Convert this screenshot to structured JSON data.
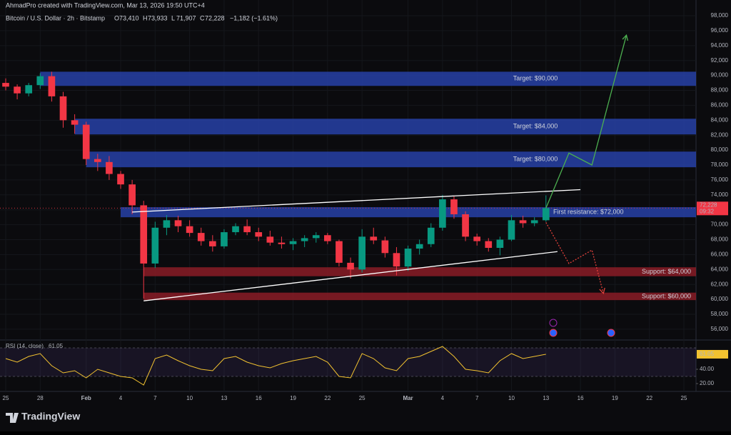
{
  "header": {
    "credit": "AhmadPro created with TradingView.com, Mar 13, 2026 19:50 UTC+4",
    "symbol": "Bitcoin / U.S. Dollar · 2h · Bitstamp",
    "ohlc": [
      {
        "key": "O",
        "value": "73,410"
      },
      {
        "key": "H",
        "value": "73,933"
      },
      {
        "key": "L",
        "value": "71,907"
      },
      {
        "key": "C",
        "value": "72,228"
      }
    ],
    "change": "−1,182 (−1.61%)"
  },
  "footer": {
    "brand": "TradingView"
  },
  "chart_data": {
    "type": "candlestick",
    "x": [
      "Jan 25",
      "Jan 26",
      "Jan 27",
      "Jan 28",
      "Jan 29",
      "Jan 30",
      "Jan 31",
      "Feb 1",
      "Feb 2",
      "Feb 3",
      "Feb 4",
      "Feb 5",
      "Feb 6",
      "Feb 7",
      "Feb 8",
      "Feb 9",
      "Feb 10",
      "Feb 11",
      "Feb 12",
      "Feb 13",
      "Feb 14",
      "Feb 15",
      "Feb 16",
      "Feb 17",
      "Feb 18",
      "Feb 19",
      "Feb 20",
      "Feb 21",
      "Feb 22",
      "Feb 23",
      "Feb 24",
      "Feb 25",
      "Feb 26",
      "Feb 27",
      "Feb 28",
      "Mar 1",
      "Mar 2",
      "Mar 3",
      "Mar 4",
      "Mar 5",
      "Mar 6",
      "Mar 7",
      "Mar 8",
      "Mar 9",
      "Mar 10",
      "Mar 11",
      "Mar 12",
      "Mar 13"
    ],
    "open": [
      89000,
      88500,
      87600,
      88700,
      89900,
      87200,
      84000,
      83400,
      78800,
      78400,
      76800,
      75400,
      72600,
      64800,
      69600,
      70600,
      69800,
      68900,
      67800,
      67100,
      69000,
      69800,
      69000,
      68400,
      67600,
      67400,
      67800,
      68200,
      68600,
      67800,
      64900,
      64000,
      68400,
      67900,
      66200,
      64400,
      66800,
      67400,
      69600,
      73400,
      71400,
      68400,
      67800,
      66900,
      68000,
      70600,
      70200,
      70600
    ],
    "high": [
      89600,
      88800,
      89000,
      90300,
      90500,
      87800,
      84800,
      83800,
      79500,
      79200,
      77200,
      76000,
      73200,
      70400,
      71300,
      71200,
      70600,
      69600,
      68600,
      69400,
      70200,
      70700,
      69600,
      69200,
      68400,
      68200,
      68600,
      69000,
      68900,
      68000,
      65600,
      69400,
      69600,
      68400,
      67000,
      67200,
      68000,
      70200,
      74000,
      73800,
      71800,
      68800,
      68200,
      68400,
      71300,
      71200,
      71000,
      73933
    ],
    "low": [
      88000,
      86800,
      87200,
      88200,
      86500,
      83000,
      82200,
      78000,
      77200,
      76000,
      74800,
      71400,
      60100,
      64200,
      68600,
      69000,
      68400,
      67200,
      66400,
      66800,
      68600,
      68600,
      67800,
      67200,
      66800,
      66600,
      67000,
      67600,
      67400,
      64400,
      62800,
      63600,
      67400,
      65600,
      63200,
      63800,
      66000,
      67000,
      69200,
      70800,
      67800,
      67200,
      66400,
      65900,
      67800,
      69600,
      69800,
      70400
    ],
    "close": [
      88500,
      87600,
      88700,
      89900,
      87200,
      84000,
      83400,
      78800,
      78400,
      76800,
      75400,
      72600,
      64800,
      69600,
      70600,
      69800,
      68900,
      67800,
      67100,
      69000,
      69800,
      69000,
      68400,
      67600,
      67400,
      67800,
      68200,
      68600,
      67800,
      64900,
      64000,
      68400,
      67900,
      66200,
      64400,
      66800,
      67400,
      69600,
      73400,
      71400,
      68400,
      67800,
      66900,
      68000,
      70600,
      70200,
      70600,
      72228
    ],
    "up_color": "#089981",
    "down_color": "#f23645",
    "xlim": [
      "Jan 25",
      "Mar 25"
    ],
    "xticks": [
      {
        "value": "Jan 25",
        "label": "25"
      },
      {
        "value": "Jan 28",
        "label": "28"
      },
      {
        "value": "Feb 1",
        "label": "Feb"
      },
      {
        "value": "Feb 4",
        "label": "4"
      },
      {
        "value": "Feb 7",
        "label": "7"
      },
      {
        "value": "Feb 10",
        "label": "10"
      },
      {
        "value": "Feb 13",
        "label": "13"
      },
      {
        "value": "Feb 16",
        "label": "16"
      },
      {
        "value": "Feb 19",
        "label": "19"
      },
      {
        "value": "Feb 22",
        "label": "22"
      },
      {
        "value": "Feb 25",
        "label": "25"
      },
      {
        "value": "Mar 1",
        "label": "Mar"
      },
      {
        "value": "Mar 4",
        "label": "4"
      },
      {
        "value": "Mar 7",
        "label": "7"
      },
      {
        "value": "Mar 10",
        "label": "10"
      },
      {
        "value": "Mar 13",
        "label": "13"
      },
      {
        "value": "Mar 16",
        "label": "16"
      },
      {
        "value": "Mar 19",
        "label": "19"
      },
      {
        "value": "Mar 22",
        "label": "22"
      },
      {
        "value": "Mar 25",
        "label": "25"
      }
    ],
    "ylim": [
      54650,
      98960
    ],
    "yticks": [
      {
        "value": 56000,
        "label": "56,000"
      },
      {
        "value": 58000,
        "label": "58,000"
      },
      {
        "value": 60000,
        "label": "60,000"
      },
      {
        "value": 62000,
        "label": "62,000"
      },
      {
        "value": 64000,
        "label": "64,000"
      },
      {
        "value": 66000,
        "label": "66,000"
      },
      {
        "value": 68000,
        "label": "68,000"
      },
      {
        "value": 70000,
        "label": "70,000"
      },
      {
        "value": 72000,
        "label": "72,000"
      },
      {
        "value": 74000,
        "label": "74,000"
      },
      {
        "value": 76000,
        "label": "76,000"
      },
      {
        "value": 78000,
        "label": "78,000"
      },
      {
        "value": 80000,
        "label": "80,000"
      },
      {
        "value": 82000,
        "label": "82,000"
      },
      {
        "value": 84000,
        "label": "84,000"
      },
      {
        "value": 86000,
        "label": "86,000"
      },
      {
        "value": 88000,
        "label": "88,000"
      },
      {
        "value": 90000,
        "label": "90,000"
      },
      {
        "value": 92000,
        "label": "92,000"
      },
      {
        "value": 94000,
        "label": "94,000"
      },
      {
        "value": 96000,
        "label": "96,000"
      },
      {
        "value": 98000,
        "label": "98,000"
      }
    ],
    "last_price": {
      "value": 72228,
      "label": "72,228"
    },
    "countdown": "09:32",
    "zones": [
      {
        "label": "Target: $90,000",
        "range": [
          88600,
          90500
        ],
        "from": "Jan 28",
        "color": "#2741a6",
        "align": "middle"
      },
      {
        "label": "Target: $84,000",
        "range": [
          82100,
          84200
        ],
        "from": "Jan 31",
        "color": "#2741a6",
        "align": "middle"
      },
      {
        "label": "Target: $80,000",
        "range": [
          77700,
          79800
        ],
        "from": "Feb 1",
        "color": "#2741a6",
        "align": "middle"
      },
      {
        "label": "First resistance: $72,000",
        "range": [
          71000,
          72350
        ],
        "from": "Feb 4",
        "color": "#2741a6",
        "align": "start"
      },
      {
        "label": "Support: $64,000",
        "range": [
          63100,
          64300
        ],
        "from": "Feb 6",
        "color": "#8a1c26",
        "align": "end"
      },
      {
        "label": "Support: $60,000",
        "range": [
          59900,
          60900
        ],
        "from": "Feb 6",
        "color": "#8a1c26",
        "align": "end"
      }
    ],
    "lines": [
      {
        "x": [
          "Feb 5",
          "Mar 16"
        ],
        "values": [
          71700,
          74700
        ],
        "color": "#ffffff",
        "style": "solid"
      },
      {
        "x": [
          "Feb 6",
          "Mar 14"
        ],
        "values": [
          59800,
          66400
        ],
        "color": "#ffffff",
        "style": "solid"
      },
      {
        "x": [
          "Mar 13",
          "Mar 15",
          "Mar 17",
          "Mar 20"
        ],
        "values": [
          72228,
          79600,
          78000,
          95400
        ],
        "color": "#4caf50",
        "style": "solid"
      },
      {
        "x": [
          "Mar 13",
          "Mar 15",
          "Mar 17",
          "Mar 18"
        ],
        "values": [
          70300,
          64800,
          66600,
          60800
        ],
        "color": "#e0403a",
        "style": "dotted"
      }
    ],
    "rsi": {
      "title": "RSI (14, close)",
      "label": "61.05",
      "color": "#f2c230",
      "values": [
        55,
        50,
        58,
        62,
        45,
        35,
        38,
        28,
        40,
        35,
        30,
        28,
        18,
        55,
        60,
        52,
        45,
        40,
        38,
        55,
        58,
        50,
        45,
        42,
        48,
        52,
        55,
        58,
        50,
        30,
        28,
        62,
        55,
        42,
        38,
        55,
        58,
        65,
        72,
        58,
        40,
        38,
        35,
        52,
        62,
        55,
        58,
        61.05
      ],
      "ylim": [
        11,
        79
      ],
      "bands": [
        70,
        30
      ],
      "yticks": [
        {
          "value": 40,
          "label": "40.00"
        },
        {
          "value": 20,
          "label": "20.00"
        }
      ]
    }
  }
}
